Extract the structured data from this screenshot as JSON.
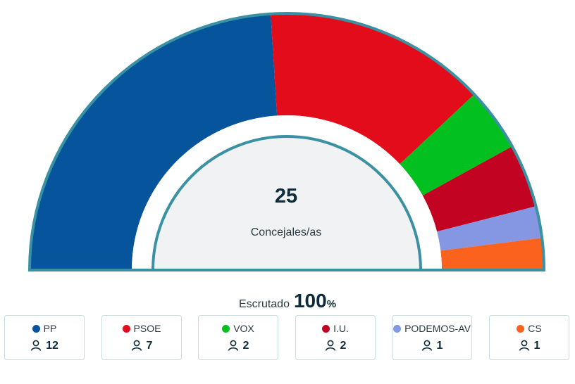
{
  "chart_data": {
    "type": "pie",
    "variant": "hemicycle",
    "total": 25,
    "total_label": "Concejales/as",
    "series": [
      {
        "name": "PP",
        "seats": 12,
        "color": "#05549c"
      },
      {
        "name": "PSOE",
        "seats": 7,
        "color": "#e20c1a"
      },
      {
        "name": "VOX",
        "seats": 2,
        "color": "#03c021"
      },
      {
        "name": "I.U.",
        "seats": 2,
        "color": "#c20422"
      },
      {
        "name": "PODEMOS-AV",
        "seats": 1,
        "color": "#8597e3"
      },
      {
        "name": "CS",
        "seats": 1,
        "color": "#fa621e"
      }
    ]
  },
  "scrutiny": {
    "label": "Escrutado",
    "value": "100",
    "unit": "%"
  },
  "icons": {
    "seat": "person-icon"
  },
  "accent_color": "#3a91a3"
}
